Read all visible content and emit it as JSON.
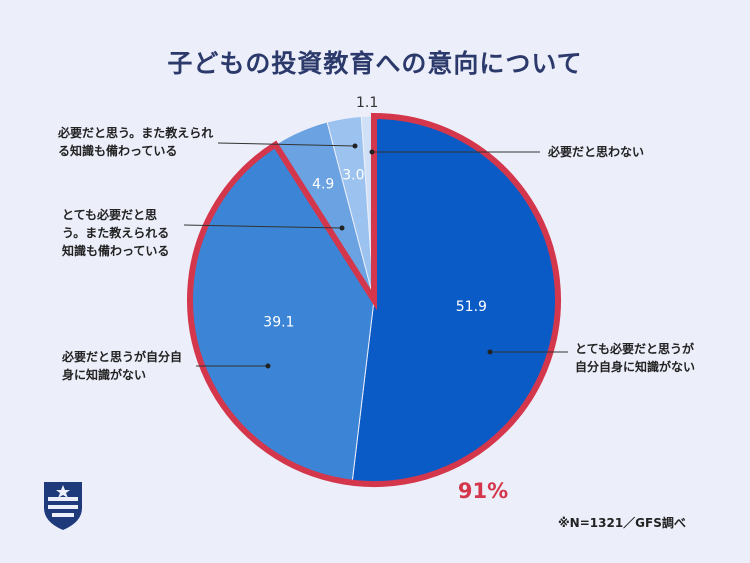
{
  "chart_data": {
    "type": "pie",
    "title": "子どもの投資教育への意向について",
    "categories": [
      "とても必要だと思うが自分自身に知識がない",
      "必要だと思うが自分自身に知識がない",
      "とても必要だと思う。また教えられる知識も備わっている",
      "必要だと思う。また教えられる知識も備わっている",
      "必要だと思わない"
    ],
    "values": [
      51.9,
      39.1,
      4.9,
      3.0,
      1.1
    ],
    "value_labels": [
      "51.9",
      "39.1",
      "4.9",
      "3.0",
      "1.1"
    ],
    "colors": [
      "#0b5bc6",
      "#3b84d6",
      "#6aa2e2",
      "#9cc3ef",
      "#d0e1f7"
    ],
    "annotation": "91%",
    "highlight_color": "#d4374b",
    "footnote": "※N=1321／GFS調べ",
    "logo": "GFS"
  }
}
